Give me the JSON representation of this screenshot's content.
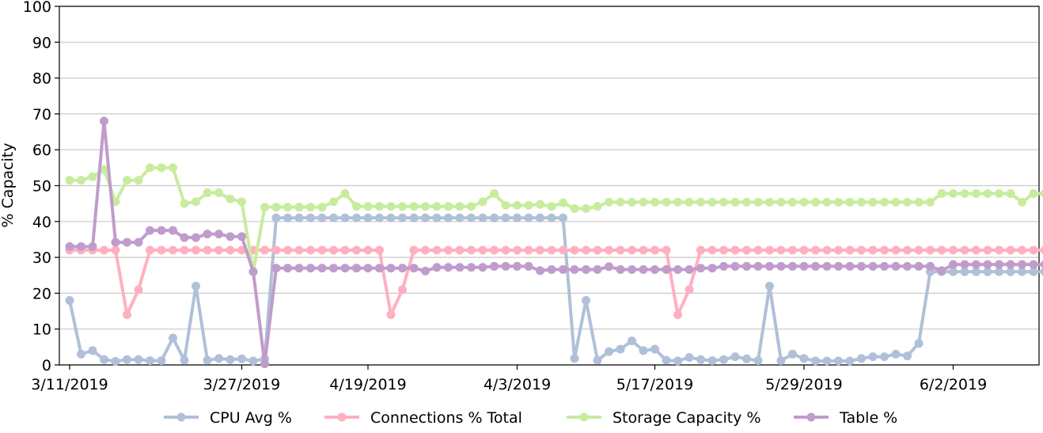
{
  "chart_data": {
    "type": "line",
    "ylabel": "% Capacity",
    "ylim": [
      0,
      100
    ],
    "yticks": [
      0,
      10,
      20,
      30,
      40,
      50,
      60,
      70,
      80,
      90,
      100
    ],
    "grid": true,
    "legend_position": "bottom",
    "xtick_labels": [
      "3/11/2019",
      "3/27/2019",
      "4/19/2019",
      "4/3/2019",
      "5/17/2019",
      "5/29/2019",
      "6/2/2019"
    ],
    "xtick_positions": [
      0,
      15,
      26,
      39,
      51,
      64,
      77
    ],
    "series": [
      {
        "name": "CPU Avg %",
        "color": "#b0c0d8",
        "values": [
          18,
          3,
          4,
          1.5,
          1,
          1.5,
          1.5,
          1.2,
          1.2,
          7.5,
          1.3,
          22,
          1.3,
          1.8,
          1.5,
          1.7,
          1.1,
          1.7,
          41,
          41,
          41,
          41,
          41,
          41,
          41,
          41,
          41,
          41,
          41,
          41,
          41,
          41,
          41,
          41,
          41,
          41,
          41,
          41,
          41,
          41,
          41,
          41,
          41,
          41,
          1.8,
          18,
          1.3,
          3.7,
          4.4,
          6.7,
          4,
          4.4,
          1.3,
          1.1,
          2.1,
          1.5,
          1.2,
          1.5,
          2.3,
          1.7,
          1.2,
          22,
          1.2,
          3,
          1.8,
          1.1,
          1.1,
          1.1,
          1.1,
          1.8,
          2.3,
          2.3,
          3,
          2.5,
          6,
          26,
          26,
          26,
          26,
          26,
          26,
          26,
          26,
          26,
          26,
          26,
          26
        ]
      },
      {
        "name": "Connections % Total",
        "color": "#ffb0c0",
        "values": [
          32,
          32,
          32,
          32,
          32,
          14,
          21,
          32,
          32,
          32,
          32,
          32,
          32,
          32,
          32,
          32,
          32,
          32,
          32,
          32,
          32,
          32,
          32,
          32,
          32,
          32,
          32,
          32,
          14,
          21,
          32,
          32,
          32,
          32,
          32,
          32,
          32,
          32,
          32,
          32,
          32,
          32,
          32,
          32,
          32,
          32,
          32,
          32,
          32,
          32,
          32,
          32,
          32,
          14,
          21,
          32,
          32,
          32,
          32,
          32,
          32,
          32,
          32,
          32,
          32,
          32,
          32,
          32,
          32,
          32,
          32,
          32,
          32,
          32,
          32,
          32,
          32,
          32,
          32,
          32,
          32,
          32,
          32,
          32,
          32,
          32,
          32,
          32
        ]
      },
      {
        "name": "Storage Capacity %",
        "color": "#c8ec9e",
        "values": [
          51.5,
          51.5,
          52.5,
          54.5,
          45.5,
          51.5,
          51.5,
          55,
          55,
          55,
          45,
          45.5,
          48,
          48,
          46.3,
          45.5,
          26,
          44,
          44,
          44,
          44,
          44,
          44,
          45.5,
          47.8,
          44.2,
          44.2,
          44.2,
          44.2,
          44.2,
          44.2,
          44.2,
          44.2,
          44.2,
          44.2,
          44.2,
          45.5,
          47.8,
          44.5,
          44.5,
          44.5,
          44.8,
          44.2,
          45.2,
          43.6,
          43.6,
          44.2,
          45.4,
          45.4,
          45.4,
          45.4,
          45.4,
          45.4,
          45.4,
          45.4,
          45.4,
          45.4,
          45.4,
          45.4,
          45.4,
          45.4,
          45.4,
          45.4,
          45.4,
          45.4,
          45.4,
          45.4,
          45.4,
          45.4,
          45.4,
          45.4,
          45.4,
          45.4,
          45.4,
          45.4,
          45.4,
          47.8,
          47.8,
          47.8,
          47.8,
          47.8,
          47.8,
          47.8,
          45.4,
          47.8,
          47.8,
          47.8,
          47.8
        ]
      },
      {
        "name": "Table %",
        "color": "#c09ccc",
        "values": [
          33,
          33,
          33,
          68,
          34.2,
          34.2,
          34.2,
          37.5,
          37.5,
          37.5,
          35.5,
          35.5,
          36.5,
          36.5,
          35.8,
          35.8,
          26,
          0.3,
          27,
          27,
          27,
          27,
          27,
          27,
          27,
          27,
          27,
          27,
          27,
          27,
          27,
          26.2,
          27.2,
          27.2,
          27.2,
          27.2,
          27.2,
          27.5,
          27.5,
          27.5,
          27.5,
          26.3,
          26.6,
          26.6,
          26.6,
          26.6,
          26.6,
          27.4,
          26.6,
          26.6,
          26.6,
          26.6,
          26.6,
          26.6,
          26.6,
          27,
          27,
          27.5,
          27.5,
          27.5,
          27.5,
          27.5,
          27.5,
          27.5,
          27.5,
          27.5,
          27.5,
          27.5,
          27.5,
          27.5,
          27.5,
          27.5,
          27.5,
          27.5,
          27.5,
          27.5,
          26.3,
          28,
          28,
          28,
          28,
          28,
          28,
          28,
          28,
          28,
          28,
          28
        ]
      }
    ]
  }
}
